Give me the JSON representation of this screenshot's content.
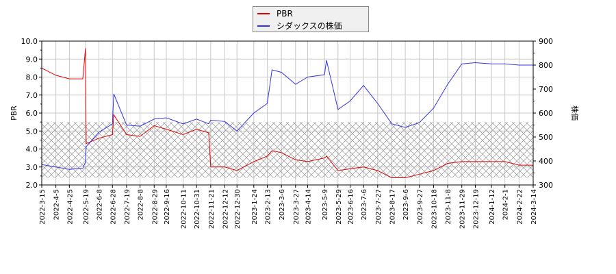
{
  "legend": {
    "items": [
      {
        "label": "PBR",
        "color": "#e00000"
      },
      {
        "label": "シダックスの株価",
        "color": "#3333dd"
      }
    ]
  },
  "axes": {
    "left_label": "PBR",
    "right_label": "株価",
    "left_ticks": [
      "10.0",
      "9.0",
      "8.0",
      "7.0",
      "6.0",
      "5.0",
      "4.0",
      "3.0",
      "2.0"
    ],
    "right_ticks": [
      "900",
      "800",
      "700",
      "600",
      "500",
      "400",
      "300"
    ]
  },
  "chart_data": {
    "type": "line",
    "title": "",
    "xlabel": "",
    "ylabel": "PBR",
    "ylabel_right": "株価",
    "ylim": [
      2.0,
      10.0
    ],
    "ylim_right": [
      300,
      900
    ],
    "grid": true,
    "legend_position": "top-center",
    "shaded_band_pbr": [
      2.4,
      5.5
    ],
    "x_ticks": [
      "2022-3-15",
      "2022-4-5",
      "2022-4-25",
      "2022-5-19",
      "2022-6-8",
      "2022-6-28",
      "2022-7-19",
      "2022-8-8",
      "2022-8-29",
      "2022-9-16",
      "2022-10-11",
      "2022-10-31",
      "2022-11-21",
      "2022-12-12",
      "2022-12-30",
      "2023-1-24",
      "2023-2-13",
      "2023-3-6",
      "2023-3-27",
      "2023-4-14",
      "2023-5-9",
      "2023-5-29",
      "2023-6-16",
      "2023-7-6",
      "2023-7-27",
      "2023-8-17",
      "2023-9-6",
      "2023-9-27",
      "2023-10-18",
      "2023-11-8",
      "2023-11-29",
      "2023-12-19",
      "2024-1-12",
      "2024-2-1",
      "2024-2-22",
      "2024-3-14"
    ],
    "x": [
      "2022-3-15",
      "2022-4-5",
      "2022-4-25",
      "2022-5-15",
      "2022-5-19",
      "2022-5-20",
      "2022-6-8",
      "2022-6-28",
      "2022-6-30",
      "2022-7-19",
      "2022-8-8",
      "2022-8-29",
      "2022-9-16",
      "2022-10-11",
      "2022-10-31",
      "2022-11-18",
      "2022-11-21",
      "2022-12-12",
      "2022-12-30",
      "2023-1-24",
      "2023-2-13",
      "2023-2-20",
      "2023-3-6",
      "2023-3-27",
      "2023-4-14",
      "2023-5-9",
      "2023-5-12",
      "2023-5-29",
      "2023-6-16",
      "2023-7-6",
      "2023-7-27",
      "2023-8-17",
      "2023-9-6",
      "2023-9-27",
      "2023-10-18",
      "2023-11-8",
      "2023-11-29",
      "2023-12-19",
      "2024-1-12",
      "2024-2-1",
      "2024-2-22",
      "2024-3-14"
    ],
    "series": [
      {
        "name": "PBR",
        "axis": "left",
        "color": "#e00000",
        "values": [
          8.5,
          8.1,
          7.9,
          7.9,
          9.6,
          4.3,
          4.6,
          4.8,
          5.9,
          4.8,
          4.7,
          5.3,
          5.1,
          4.8,
          5.1,
          4.9,
          3.0,
          3.0,
          2.8,
          3.3,
          3.6,
          3.9,
          3.8,
          3.4,
          3.3,
          3.5,
          3.6,
          2.8,
          2.9,
          3.0,
          2.8,
          2.4,
          2.4,
          2.6,
          2.8,
          3.2,
          3.3,
          3.3,
          3.3,
          3.3,
          3.1,
          3.1
        ]
      },
      {
        "name": "シダックスの株価",
        "axis": "right",
        "color": "#3333dd",
        "values": [
          385,
          375,
          365,
          370,
          395,
          460,
          520,
          555,
          680,
          550,
          545,
          575,
          580,
          555,
          575,
          555,
          570,
          565,
          525,
          600,
          640,
          780,
          770,
          720,
          750,
          760,
          820,
          615,
          650,
          715,
          640,
          555,
          540,
          560,
          620,
          720,
          805,
          810,
          805,
          805,
          800,
          800
        ]
      }
    ]
  }
}
